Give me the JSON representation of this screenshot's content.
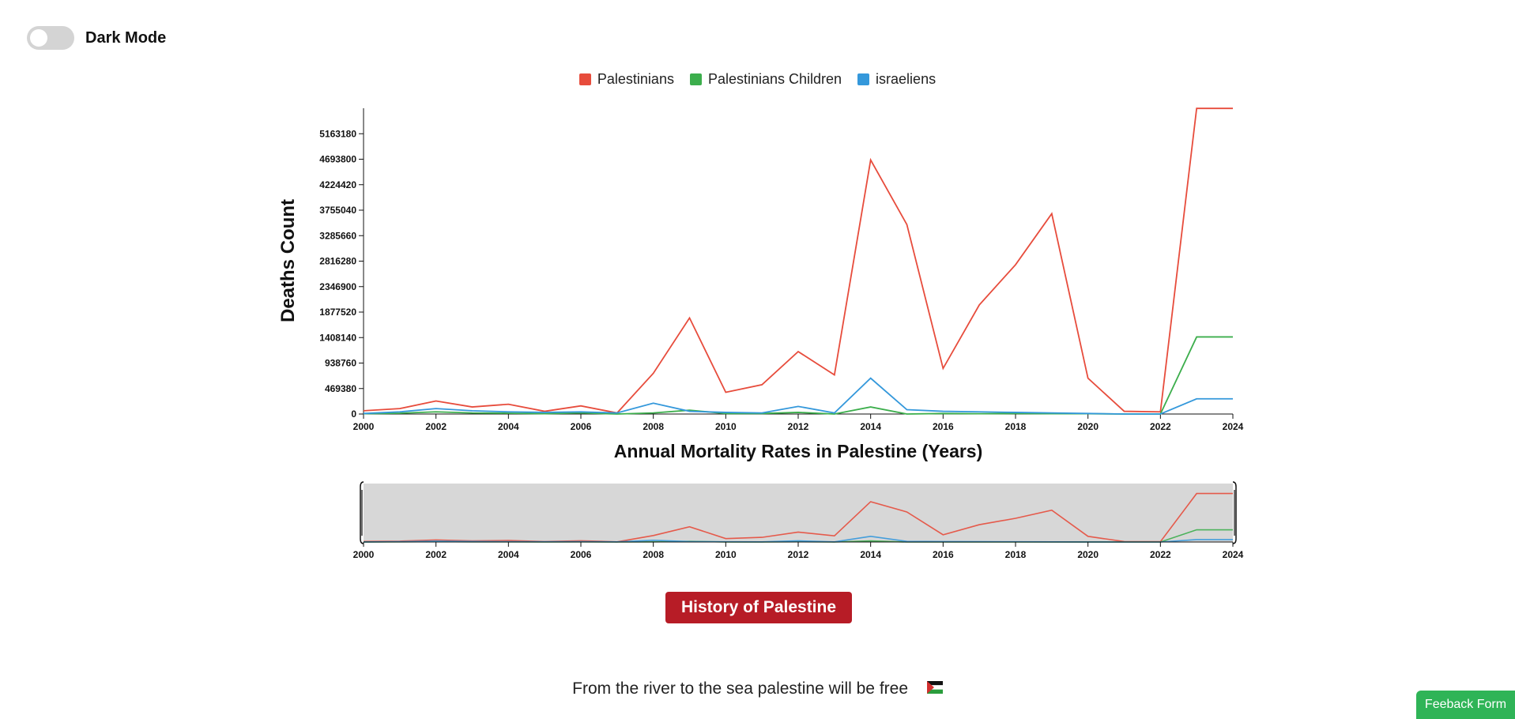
{
  "darkmode": {
    "label": "Dark Mode",
    "on": false
  },
  "buttons": {
    "history": "History of Palestine",
    "feedback": "Feeback Form"
  },
  "footer": {
    "text": "From the river to the sea palestine will be free"
  },
  "chart_data": {
    "type": "line",
    "xlabel": "Annual Mortality Rates in Palestine (Years)",
    "ylabel": "Deaths Count",
    "xlim": [
      2000,
      2024
    ],
    "ylim": [
      0,
      5632560
    ],
    "xticks": [
      2000,
      2002,
      2004,
      2006,
      2008,
      2010,
      2012,
      2014,
      2016,
      2018,
      2020,
      2022,
      2024
    ],
    "yticks": [
      0,
      469380,
      938760,
      1408140,
      1877520,
      2346900,
      2816280,
      3285660,
      3755040,
      4224420,
      4693800,
      5163180
    ],
    "legend_position": "top-center",
    "grid": false,
    "x": [
      2000,
      2001,
      2002,
      2003,
      2004,
      2005,
      2006,
      2007,
      2008,
      2009,
      2010,
      2011,
      2012,
      2013,
      2014,
      2015,
      2016,
      2017,
      2018,
      2019,
      2020,
      2021,
      2022,
      2023,
      2024
    ],
    "series": [
      {
        "name": "Palestinians",
        "color": "#e74c3c",
        "values": [
          60000,
          100000,
          240000,
          130000,
          180000,
          50000,
          150000,
          20000,
          750000,
          1770000,
          400000,
          540000,
          1150000,
          720000,
          4680000,
          3490000,
          840000,
          2010000,
          2750000,
          3690000,
          660000,
          50000,
          40000,
          5630000,
          5630000
        ]
      },
      {
        "name": "Palestinians Children",
        "color": "#3cae4c",
        "values": [
          5000,
          15000,
          40000,
          20000,
          15000,
          5000,
          20000,
          0,
          20000,
          70000,
          10000,
          10000,
          30000,
          0,
          130000,
          0,
          10000,
          5000,
          10000,
          5000,
          5000,
          0,
          0,
          1420000,
          1420000
        ]
      },
      {
        "name": "israeliens",
        "color": "#3498db",
        "values": [
          10000,
          40000,
          100000,
          60000,
          40000,
          30000,
          40000,
          20000,
          200000,
          50000,
          30000,
          20000,
          140000,
          20000,
          660000,
          80000,
          50000,
          40000,
          30000,
          20000,
          10000,
          0,
          0,
          280000,
          280000
        ]
      }
    ]
  }
}
